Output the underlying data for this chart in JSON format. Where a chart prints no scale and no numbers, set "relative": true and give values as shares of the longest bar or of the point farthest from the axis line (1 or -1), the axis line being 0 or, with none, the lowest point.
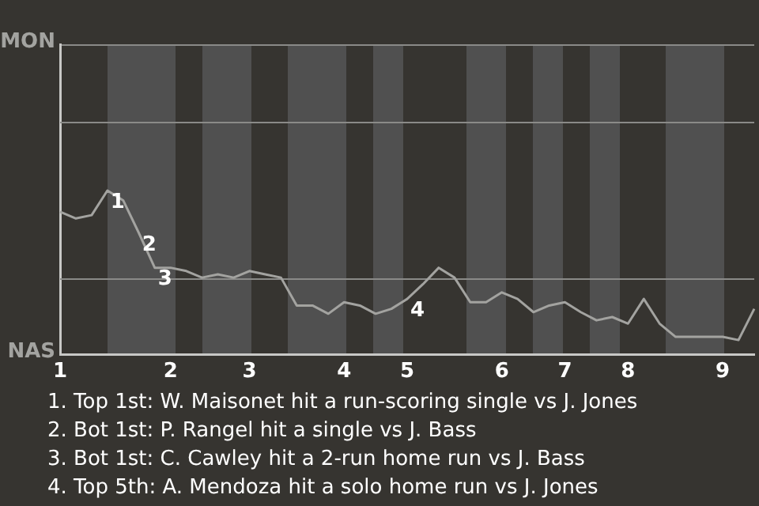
{
  "chart_data": {
    "type": "line",
    "relative": true,
    "categories": [
      "1",
      null,
      null,
      null,
      null,
      null,
      null,
      "2",
      null,
      null,
      null,
      null,
      "3",
      null,
      null,
      null,
      null,
      null,
      "4",
      null,
      null,
      null,
      "5",
      null,
      null,
      null,
      null,
      null,
      "6",
      null,
      null,
      null,
      "7",
      null,
      null,
      null,
      "8",
      null,
      null,
      null,
      null,
      null,
      "9",
      null,
      null
    ],
    "series": [
      {
        "color": "#a3a3a0",
        "values": [
          0.87,
          0.83,
          0.85,
          1,
          0.94,
          0.74,
          0.53,
          0.53,
          0.51,
          0.47,
          0.49,
          0.47,
          0.51,
          0.49,
          0.47,
          0.3,
          0.3,
          0.25,
          0.32,
          0.3,
          0.25,
          0.28,
          0.34,
          0.43,
          0.53,
          0.47,
          0.32,
          0.32,
          0.38,
          0.34,
          0.26,
          0.3,
          0.32,
          0.26,
          0.21,
          0.23,
          0.19,
          0.34,
          0.19,
          0.11,
          0.11,
          0.11,
          0.11,
          0.09,
          0.28
        ]
      }
    ],
    "marker": "none",
    "ref_lines": [
      {
        "axis": "y",
        "value": 0.47,
        "color": "#8a8a88"
      },
      {
        "axis": "y",
        "value": 1.42,
        "color": "#8a8a88"
      }
    ],
    "annotations": [
      "MON",
      "NAS",
      "1",
      "2",
      "3",
      "4",
      "1. Top 1st: W. Maisonet hit a run-scoring single vs J. Jones",
      "2. Bot 1st: P. Rangel hit a single vs J. Bass",
      "3. Bot 1st: C. Cawley hit a 2-run home run vs J. Bass",
      "4. Top 5th: A. Mendoza hit a solo home run vs J. Jones"
    ]
  }
}
